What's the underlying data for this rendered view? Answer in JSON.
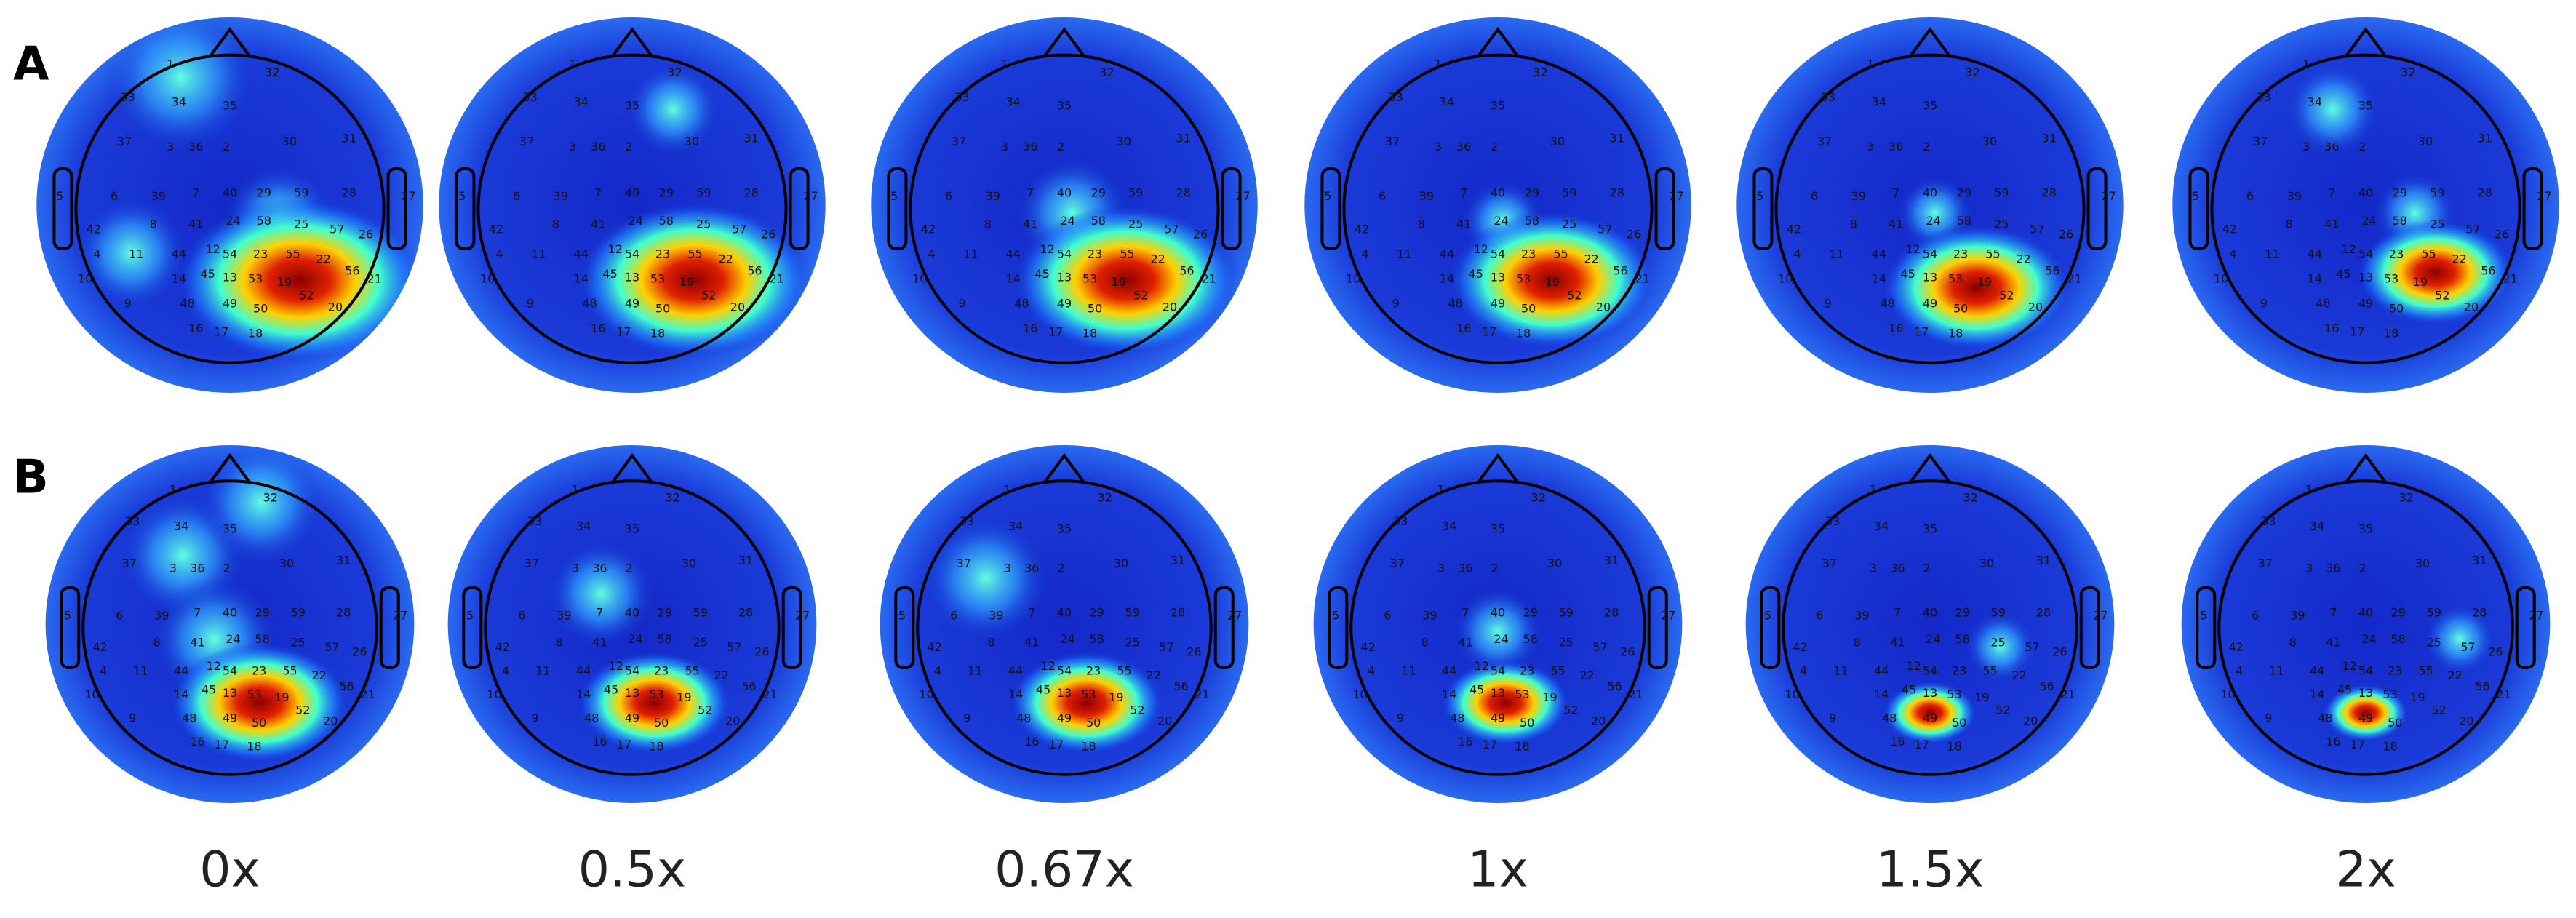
{
  "row_labels": [
    "A",
    "B"
  ],
  "column_labels": [
    "0x",
    "0.5x",
    "0.67x",
    "1x",
    "1.5x",
    "2x"
  ],
  "electrode_labels": [
    "1",
    "32",
    "33",
    "34",
    "35",
    "37",
    "3",
    "36",
    "2",
    "30",
    "31",
    "27",
    "5",
    "6",
    "39",
    "7",
    "40",
    "29",
    "59",
    "28",
    "42",
    "8",
    "41",
    "24",
    "58",
    "25",
    "57",
    "26",
    "11",
    "44",
    "12",
    "54",
    "23",
    "55",
    "22",
    "10",
    "14",
    "45",
    "13",
    "53",
    "19",
    "21",
    "56",
    "48",
    "49",
    "50",
    "52",
    "20",
    "16",
    "17",
    "18",
    "9",
    "4"
  ]
}
